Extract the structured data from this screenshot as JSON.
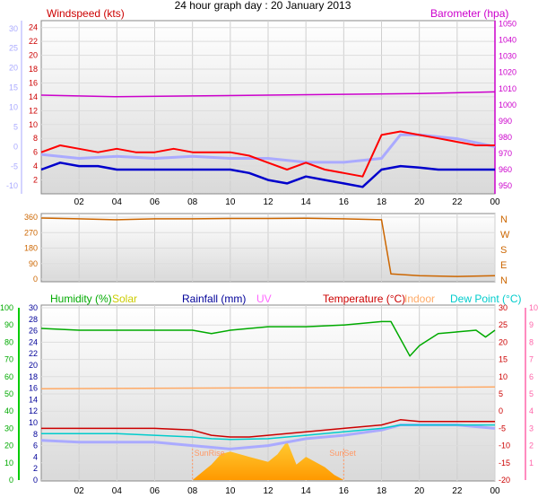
{
  "title": "24 hour graph day : 20 January 2013",
  "chart_data": [
    {
      "type": "line",
      "panel": "wind-barometer",
      "series_labels": {
        "windspeed": "Windspeed (kts)",
        "barometer": "Barometer (hpa)"
      },
      "x_ticks": [
        "02",
        "04",
        "06",
        "08",
        "10",
        "12",
        "14",
        "16",
        "18",
        "20",
        "22",
        "00"
      ],
      "y_left_ticks": [
        "2",
        "4",
        "6",
        "8",
        "10",
        "12",
        "14",
        "16",
        "18",
        "20",
        "22",
        "24"
      ],
      "y_left_ylim": [
        0,
        25
      ],
      "y_right_ticks": [
        "950",
        "960",
        "970",
        "980",
        "990",
        "1000",
        "1010",
        "1020",
        "1030",
        "1040",
        "1050"
      ],
      "y_right_ylim": [
        945,
        1052
      ],
      "y_outer_ticks": [
        "-10",
        "-5",
        "0",
        "5",
        "10",
        "15",
        "20",
        "25",
        "30"
      ],
      "colors": {
        "gust": "#ff0000",
        "average": "#0000cc",
        "barometer": "#cc00cc",
        "temp_trace": "#aaaaff"
      },
      "series": [
        {
          "key": "gust",
          "x": [
            0,
            1,
            2,
            3,
            4,
            5,
            6,
            7,
            8,
            9,
            10,
            11,
            12,
            13,
            14,
            15,
            16,
            17,
            18,
            19,
            20,
            21,
            22,
            23,
            24
          ],
          "values": [
            6,
            7,
            6.5,
            6,
            6.5,
            6,
            6,
            6.5,
            6,
            6,
            6,
            5.5,
            4.5,
            3.5,
            4.5,
            3.5,
            3,
            2.5,
            8.5,
            9,
            8.5,
            8,
            7.5,
            7,
            7
          ]
        },
        {
          "key": "average",
          "x": [
            0,
            1,
            2,
            3,
            4,
            5,
            6,
            7,
            8,
            9,
            10,
            11,
            12,
            13,
            14,
            15,
            16,
            17,
            18,
            19,
            20,
            21,
            22,
            23,
            24
          ],
          "values": [
            3.5,
            4.5,
            4,
            4,
            3.5,
            3.5,
            3.5,
            3.5,
            3.5,
            3.5,
            3.5,
            3,
            2,
            1.5,
            2.5,
            2,
            1.5,
            1,
            3.5,
            4,
            3.8,
            3.5,
            3.5,
            3.5,
            3.5
          ]
        },
        {
          "key": "barometer",
          "x": [
            0,
            4,
            8,
            12,
            16,
            20,
            24
          ],
          "values": [
            1006,
            1005,
            1005.5,
            1006,
            1006.5,
            1007,
            1008
          ]
        },
        {
          "key": "temp_trace",
          "x": [
            0,
            2,
            4,
            6,
            8,
            10,
            12,
            14,
            16,
            18,
            19,
            20,
            22,
            24
          ],
          "values": [
            -2,
            -3,
            -2.5,
            -3,
            -2.5,
            -3,
            -3,
            -4,
            -4,
            -3,
            3,
            3,
            2,
            0
          ]
        }
      ]
    },
    {
      "type": "line",
      "panel": "wind-direction",
      "y_ticks": [
        "360",
        "270",
        "180",
        "90",
        "0"
      ],
      "y_ylim": [
        0,
        360
      ],
      "compass_labels": [
        "N",
        "W",
        "S",
        "E",
        "N"
      ],
      "color": "#cc6600",
      "series": [
        {
          "key": "direction",
          "x": [
            0,
            2,
            4,
            6,
            8,
            10,
            12,
            14,
            16,
            18,
            18.5,
            20,
            22,
            24
          ],
          "values": [
            355,
            350,
            345,
            350,
            350,
            352,
            352,
            353,
            350,
            345,
            30,
            20,
            15,
            20
          ]
        }
      ]
    },
    {
      "type": "line",
      "panel": "temperature-humidity",
      "labels": {
        "humidity": "Humidity (%)",
        "solar": "Solar",
        "rainfall": "Rainfall (mm)",
        "uv": "UV",
        "temperature": "Temperature (°C)",
        "indoor": "Indoor",
        "dewpoint": "Dew Point (°C)"
      },
      "sun_labels": {
        "sunrise": "SunRise",
        "sunset": "SunSet"
      },
      "sunrise_hour": 8,
      "sunset_hour": 16,
      "y_humidity_ticks": [
        "0",
        "10",
        "20",
        "30",
        "40",
        "50",
        "60",
        "70",
        "80",
        "90",
        "100"
      ],
      "y_rain_ticks": [
        "0",
        "2",
        "4",
        "6",
        "8",
        "10",
        "12",
        "14",
        "16",
        "18",
        "20",
        "22",
        "24",
        "26",
        "28",
        "30"
      ],
      "y_temp_ticks": [
        "-20",
        "-15",
        "-10",
        "-5",
        "0",
        "5",
        "10",
        "15",
        "20",
        "25",
        "30"
      ],
      "y_uv_ticks": [
        "1",
        "2",
        "3",
        "4",
        "5",
        "6",
        "7",
        "8",
        "9",
        "10"
      ],
      "colors": {
        "humidity": "#00aa00",
        "solar": "#cccc00",
        "rainfall": "#000099",
        "uv": "#ff66ff",
        "temperature": "#cc0000",
        "indoor": "#ffaa66",
        "dewpoint": "#00cccc"
      },
      "series": [
        {
          "key": "humidity",
          "x": [
            0,
            2,
            4,
            6,
            8,
            9,
            10,
            12,
            14,
            16,
            18,
            18.5,
            19,
            19.5,
            20,
            21,
            22,
            23,
            23.5,
            24
          ],
          "values": [
            88,
            87,
            87,
            87,
            87,
            85,
            87,
            89,
            89,
            90,
            92,
            92,
            82,
            72,
            78,
            85,
            86,
            87,
            83,
            87
          ]
        },
        {
          "key": "indoor",
          "x": [
            0,
            24
          ],
          "values": [
            53,
            54
          ]
        },
        {
          "key": "temperature",
          "x": [
            0,
            2,
            4,
            6,
            8,
            9,
            10,
            11,
            12,
            14,
            16,
            18,
            19,
            20,
            22,
            24
          ],
          "values": [
            -5,
            -5,
            -5,
            -5,
            -5.5,
            -7,
            -7.5,
            -7.5,
            -7,
            -6,
            -5,
            -4,
            -2.5,
            -3,
            -3,
            -3
          ]
        },
        {
          "key": "dewpoint",
          "x": [
            0,
            2,
            4,
            6,
            8,
            9,
            10,
            12,
            14,
            16,
            18,
            19,
            20,
            22,
            24
          ],
          "values": [
            -6.5,
            -6.5,
            -6.5,
            -7,
            -7.5,
            -8,
            -8.2,
            -8,
            -7,
            -6,
            -5,
            -4,
            -4,
            -4,
            -4
          ]
        },
        {
          "key": "solar_trace",
          "x": [
            0,
            2,
            4,
            6,
            8,
            9,
            10,
            12,
            14,
            16,
            18,
            19,
            20,
            22,
            24
          ],
          "values": [
            -8.5,
            -9,
            -9,
            -9,
            -10,
            -10.5,
            -11,
            -10,
            -8,
            -7,
            -5.5,
            -4,
            -4,
            -4,
            -5
          ]
        },
        {
          "key": "solar",
          "x": [
            8,
            8.5,
            9,
            9.5,
            10,
            11,
            12,
            12.5,
            13,
            13.5,
            14,
            15,
            15.5,
            16
          ],
          "values": [
            0,
            3,
            6,
            10,
            11,
            9,
            7,
            10,
            15,
            6,
            9,
            5,
            2,
            0
          ]
        }
      ]
    }
  ]
}
